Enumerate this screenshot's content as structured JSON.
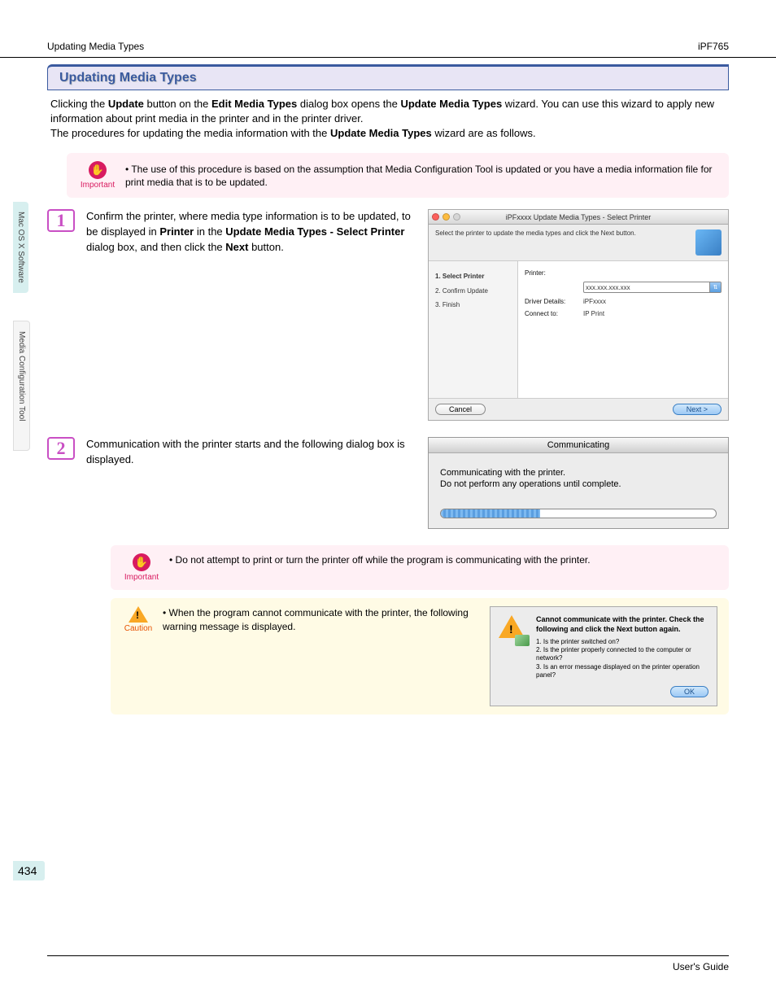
{
  "header": {
    "left": "Updating Media Types",
    "right": "iPF765"
  },
  "section_title": "Updating Media Types",
  "intro": {
    "p1_pre": "Clicking the ",
    "p1_b1": "Update",
    "p1_mid1": " button on the ",
    "p1_b2": "Edit Media Types",
    "p1_mid2": " dialog box opens the ",
    "p1_b3": "Update Media Types",
    "p1_end": " wizard. You can use this wizard to apply new information about print media in the printer and in the printer driver.",
    "p2_pre": "The procedures for updating the media information with the ",
    "p2_b1": "Update Media Types",
    "p2_end": " wizard are as follows."
  },
  "important1": {
    "label": "Important",
    "text": "The use of this procedure is based on the assumption that Media Configuration Tool is updated or you have a media information file for print media that is to be updated."
  },
  "step1": {
    "num": "1",
    "text_pre": "Confirm the printer, where media type information is to be updated, to be displayed in ",
    "text_b1": "Printer",
    "text_mid1": " in the ",
    "text_b2": "Update Media Types - Select Printer",
    "text_mid2": " dialog box, and then click the ",
    "text_b3": "Next",
    "text_end": " button.",
    "dialog": {
      "title": "iPFxxxx Update Media Types - Select Printer",
      "instruction": "Select the printer to update the media types and click the Next button.",
      "steps_label1": "1. Select Printer",
      "steps_label2": "2. Confirm Update",
      "steps_label3": "3. Finish",
      "printer_label": "Printer:",
      "printer_value": "xxx.xxx.xxx.xxx",
      "driver_label": "Driver Details:",
      "driver_value": "iPFxxxx",
      "connect_label": "Connect to:",
      "connect_value": "IP Print",
      "cancel_btn": "Cancel",
      "next_btn": "Next >"
    }
  },
  "step2": {
    "num": "2",
    "text": "Communication with the printer starts and the following dialog box is displayed.",
    "dialog": {
      "title": "Communicating",
      "line1": "Communicating with the printer.",
      "line2": "Do not perform any operations until complete.",
      "progress_percent": 36,
      "progress_fill_color": "#6aa9e9",
      "bg_color": "#ececec"
    },
    "important": {
      "label": "Important",
      "text": "Do not attempt to print or turn the printer off while the program is communicating with the printer."
    },
    "caution": {
      "label": "Caution",
      "text": "When the program cannot communicate with the printer, the following warning message is displayed.",
      "error_dialog": {
        "title": "Cannot communicate with the printer. Check the following and click the Next button again.",
        "item1": "1. Is the printer switched on?",
        "item2": "2. Is the printer properly connected to the computer or network?",
        "item3": "3. Is an error message displayed on the printer operation panel?",
        "ok_btn": "OK"
      }
    }
  },
  "side_tabs": {
    "tab1": "Mac OS X Software",
    "tab2": "Media Configuration Tool"
  },
  "page_number": "434",
  "footer": "User's Guide",
  "colors": {
    "heading_border": "#3a5a9f",
    "heading_bg": "#e8e5f5",
    "important_bg": "#fff0f5",
    "important_accent": "#d81b60",
    "caution_bg": "#fffbe5",
    "caution_accent": "#f9a825",
    "step_border": "#c94fc4",
    "side_tab_bg": "#d7efef"
  }
}
